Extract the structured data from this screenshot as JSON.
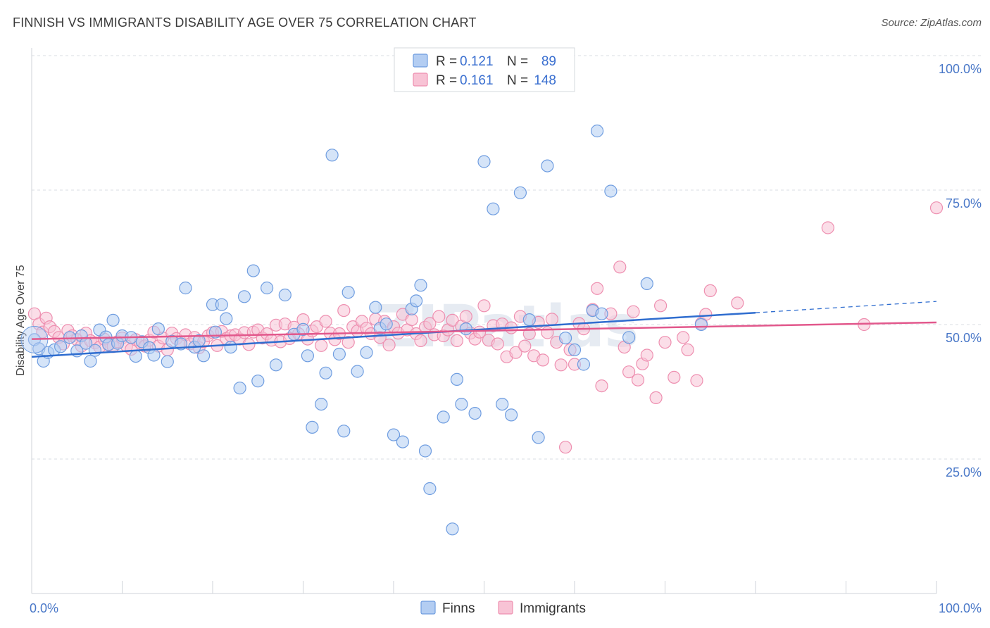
{
  "title": "FINNISH VS IMMIGRANTS DISABILITY AGE OVER 75 CORRELATION CHART",
  "source": "Source: ZipAtlas.com",
  "watermark": "ZIPatlas",
  "chart_data": {
    "type": "scatter",
    "title": "FINNISH VS IMMIGRANTS DISABILITY AGE OVER 75 CORRELATION CHART",
    "xlabel": "",
    "ylabel": "Disability Age Over 75",
    "xlim": [
      0,
      100
    ],
    "ylim": [
      0,
      100
    ],
    "x_tick_labels": [
      {
        "value": 0,
        "label": "0.0%"
      },
      {
        "value": 100,
        "label": "100.0%"
      }
    ],
    "y_tick_labels": [
      {
        "value": 100,
        "label": "100.0%"
      },
      {
        "value": 75,
        "label": "75.0%"
      },
      {
        "value": 50,
        "label": "50.0%"
      },
      {
        "value": 25,
        "label": "25.0%"
      }
    ],
    "grid": "horizontal dashed",
    "legend_position": "top-center",
    "legend": [
      {
        "series": "Finns",
        "r_label": "R =",
        "r_value": "0.121",
        "n_label": "N =",
        "n_value": "89"
      },
      {
        "series": "Immigrants",
        "r_label": "R =",
        "r_value": "0.161",
        "n_label": "N =",
        "n_value": "148"
      }
    ],
    "series": [
      {
        "name": "Finns",
        "color": "#6f9de0",
        "fill": "#b3cdf2",
        "trend": {
          "x0": 0,
          "y0": 44.0,
          "x1": 80,
          "y1": 52.2,
          "dash_to_x": 100,
          "dash_to_y": 54.3,
          "color": "#2f6dcf"
        },
        "points": [
          [
            0.3,
            47.2
          ],
          [
            0.8,
            45.5
          ],
          [
            1.3,
            43.2
          ],
          [
            1.8,
            44.8
          ],
          [
            2.5,
            45.3
          ],
          [
            3.2,
            45.9
          ],
          [
            4.2,
            47.6
          ],
          [
            5.0,
            45.1
          ],
          [
            5.5,
            47.9
          ],
          [
            6.0,
            46.5
          ],
          [
            6.5,
            43.2
          ],
          [
            7.0,
            45.2
          ],
          [
            7.5,
            49.0
          ],
          [
            8.2,
            47.7
          ],
          [
            8.5,
            46.3
          ],
          [
            9.0,
            50.8
          ],
          [
            9.5,
            46.5
          ],
          [
            10.0,
            47.9
          ],
          [
            11.0,
            47.6
          ],
          [
            11.5,
            44.1
          ],
          [
            12.2,
            46.8
          ],
          [
            13.0,
            45.7
          ],
          [
            13.5,
            44.3
          ],
          [
            14.0,
            49.2
          ],
          [
            15.0,
            43.1
          ],
          [
            15.5,
            46.9
          ],
          [
            16.5,
            46.4
          ],
          [
            17.0,
            56.8
          ],
          [
            18.0,
            45.8
          ],
          [
            18.5,
            47.0
          ],
          [
            19.0,
            44.2
          ],
          [
            20.0,
            53.7
          ],
          [
            20.3,
            48.6
          ],
          [
            21.0,
            53.7
          ],
          [
            21.5,
            51.1
          ],
          [
            22.0,
            45.8
          ],
          [
            23.0,
            38.2
          ],
          [
            23.5,
            55.2
          ],
          [
            24.5,
            60.0
          ],
          [
            25.0,
            39.5
          ],
          [
            26.0,
            56.8
          ],
          [
            27.0,
            42.5
          ],
          [
            28.0,
            55.5
          ],
          [
            29.0,
            48.2
          ],
          [
            30.0,
            49.1
          ],
          [
            30.5,
            44.2
          ],
          [
            31.0,
            30.9
          ],
          [
            32.0,
            35.2
          ],
          [
            32.5,
            41.0
          ],
          [
            33.2,
            81.5
          ],
          [
            34.0,
            44.5
          ],
          [
            34.5,
            30.2
          ],
          [
            35.0,
            56.0
          ],
          [
            36.0,
            41.3
          ],
          [
            37.0,
            44.8
          ],
          [
            38.0,
            53.2
          ],
          [
            38.5,
            49.3
          ],
          [
            39.2,
            50.1
          ],
          [
            40.0,
            29.5
          ],
          [
            41.0,
            28.2
          ],
          [
            42.0,
            52.9
          ],
          [
            42.5,
            54.4
          ],
          [
            43.0,
            57.3
          ],
          [
            43.5,
            26.5
          ],
          [
            44.0,
            19.5
          ],
          [
            45.5,
            32.8
          ],
          [
            46.5,
            12.0
          ],
          [
            47.0,
            39.8
          ],
          [
            47.5,
            35.2
          ],
          [
            48.0,
            49.2
          ],
          [
            49.0,
            33.5
          ],
          [
            50.0,
            80.3
          ],
          [
            51.0,
            71.5
          ],
          [
            52.0,
            35.2
          ],
          [
            53.0,
            33.2
          ],
          [
            54.0,
            74.5
          ],
          [
            55.0,
            50.9
          ],
          [
            56.0,
            29.0
          ],
          [
            57.0,
            79.5
          ],
          [
            59.0,
            47.5
          ],
          [
            60.0,
            45.3
          ],
          [
            61.0,
            42.6
          ],
          [
            62.0,
            52.6
          ],
          [
            62.5,
            86.0
          ],
          [
            63.0,
            52.0
          ],
          [
            64.0,
            74.8
          ],
          [
            66.0,
            47.6
          ],
          [
            68.0,
            57.6
          ],
          [
            74.0,
            50.0
          ]
        ]
      },
      {
        "name": "Immigrants",
        "color": "#ee8fb0",
        "fill": "#f8c3d5",
        "trend": {
          "x0": 0,
          "y0": 47.3,
          "x1": 100,
          "y1": 50.4,
          "color": "#e2588c"
        },
        "points": [
          [
            0.3,
            52.0
          ],
          [
            0.8,
            50.1
          ],
          [
            1.2,
            48.6
          ],
          [
            1.6,
            51.2
          ],
          [
            2.0,
            49.6
          ],
          [
            2.5,
            48.7
          ],
          [
            3.0,
            47.6
          ],
          [
            3.5,
            46.4
          ],
          [
            4.0,
            48.9
          ],
          [
            4.5,
            47.9
          ],
          [
            5.0,
            47.2
          ],
          [
            5.5,
            46.0
          ],
          [
            6.0,
            48.4
          ],
          [
            6.5,
            47.0
          ],
          [
            7.0,
            46.6
          ],
          [
            7.5,
            45.8
          ],
          [
            8.0,
            47.3
          ],
          [
            8.5,
            46.2
          ],
          [
            9.0,
            45.9
          ],
          [
            9.5,
            46.8
          ],
          [
            10.0,
            47.5
          ],
          [
            10.5,
            46.0
          ],
          [
            11.0,
            45.4
          ],
          [
            11.5,
            47.2
          ],
          [
            12.0,
            46.6
          ],
          [
            12.5,
            46.0
          ],
          [
            13.0,
            47.1
          ],
          [
            13.5,
            48.6
          ],
          [
            14.0,
            46.0
          ],
          [
            14.5,
            47.5
          ],
          [
            15.0,
            45.3
          ],
          [
            15.5,
            48.4
          ],
          [
            16.0,
            47.4
          ],
          [
            16.5,
            46.7
          ],
          [
            17.0,
            48.1
          ],
          [
            17.5,
            46.4
          ],
          [
            18.0,
            47.6
          ],
          [
            18.5,
            45.7
          ],
          [
            19.0,
            46.8
          ],
          [
            19.5,
            47.9
          ],
          [
            20.0,
            48.5
          ],
          [
            20.5,
            46.1
          ],
          [
            21.0,
            48.7
          ],
          [
            21.5,
            47.4
          ],
          [
            22.0,
            47.9
          ],
          [
            22.5,
            48.1
          ],
          [
            23.0,
            47.3
          ],
          [
            23.5,
            48.5
          ],
          [
            24.0,
            46.3
          ],
          [
            24.5,
            48.6
          ],
          [
            25.0,
            49.0
          ],
          [
            25.5,
            47.5
          ],
          [
            26.0,
            48.3
          ],
          [
            26.5,
            47.1
          ],
          [
            27.0,
            49.9
          ],
          [
            27.5,
            46.8
          ],
          [
            28.0,
            50.1
          ],
          [
            28.5,
            47.4
          ],
          [
            29.0,
            49.5
          ],
          [
            29.5,
            48.3
          ],
          [
            30.0,
            50.9
          ],
          [
            30.5,
            47.3
          ],
          [
            31.0,
            48.8
          ],
          [
            31.5,
            49.6
          ],
          [
            32.0,
            46.1
          ],
          [
            32.5,
            50.6
          ],
          [
            33.0,
            48.4
          ],
          [
            33.5,
            47.2
          ],
          [
            34.0,
            48.3
          ],
          [
            34.5,
            52.6
          ],
          [
            35.0,
            46.7
          ],
          [
            35.5,
            49.6
          ],
          [
            36.0,
            48.8
          ],
          [
            36.5,
            50.6
          ],
          [
            37.0,
            49.3
          ],
          [
            37.5,
            48.3
          ],
          [
            38.0,
            51.0
          ],
          [
            38.5,
            47.6
          ],
          [
            39.0,
            50.6
          ],
          [
            39.5,
            46.2
          ],
          [
            40.0,
            49.6
          ],
          [
            40.5,
            48.4
          ],
          [
            41.0,
            51.9
          ],
          [
            41.5,
            49.0
          ],
          [
            42.0,
            50.9
          ],
          [
            42.5,
            48.3
          ],
          [
            43.0,
            47.0
          ],
          [
            43.5,
            49.5
          ],
          [
            44.0,
            50.2
          ],
          [
            44.5,
            48.1
          ],
          [
            45.0,
            51.5
          ],
          [
            45.5,
            47.9
          ],
          [
            46.0,
            49.0
          ],
          [
            46.5,
            50.8
          ],
          [
            47.0,
            47.0
          ],
          [
            47.5,
            49.7
          ],
          [
            48.0,
            51.5
          ],
          [
            48.5,
            48.4
          ],
          [
            49.0,
            47.3
          ],
          [
            49.5,
            48.6
          ],
          [
            50.0,
            53.5
          ],
          [
            50.5,
            47.1
          ],
          [
            51.0,
            49.8
          ],
          [
            51.5,
            46.4
          ],
          [
            52.0,
            50.1
          ],
          [
            52.5,
            44.0
          ],
          [
            53.0,
            49.4
          ],
          [
            53.5,
            44.8
          ],
          [
            54.0,
            51.5
          ],
          [
            54.5,
            46.0
          ],
          [
            55.0,
            48.3
          ],
          [
            55.5,
            44.2
          ],
          [
            56.0,
            50.4
          ],
          [
            56.5,
            43.4
          ],
          [
            57.0,
            48.5
          ],
          [
            57.5,
            51.0
          ],
          [
            58.0,
            46.7
          ],
          [
            58.5,
            42.5
          ],
          [
            59.0,
            27.2
          ],
          [
            59.5,
            45.3
          ],
          [
            60.0,
            42.6
          ],
          [
            60.5,
            50.2
          ],
          [
            61.0,
            49.2
          ],
          [
            62.0,
            52.8
          ],
          [
            62.5,
            56.7
          ],
          [
            63.0,
            38.6
          ],
          [
            64.0,
            52.0
          ],
          [
            65.0,
            60.7
          ],
          [
            65.5,
            45.8
          ],
          [
            66.0,
            41.2
          ],
          [
            66.5,
            52.4
          ],
          [
            67.0,
            39.7
          ],
          [
            67.5,
            42.7
          ],
          [
            68.0,
            44.3
          ],
          [
            69.0,
            36.4
          ],
          [
            69.5,
            53.5
          ],
          [
            70.0,
            46.7
          ],
          [
            71.0,
            40.2
          ],
          [
            72.0,
            47.6
          ],
          [
            72.5,
            45.3
          ],
          [
            73.5,
            39.6
          ],
          [
            74.0,
            50.2
          ],
          [
            74.5,
            51.9
          ],
          [
            75.0,
            56.3
          ],
          [
            78.0,
            54.0
          ],
          [
            88.0,
            68.0
          ],
          [
            92.0,
            50.0
          ],
          [
            100.0,
            71.7
          ]
        ]
      }
    ]
  },
  "bottom_legend": [
    {
      "label": "Finns",
      "color": "#b3cdf2",
      "stroke": "#6f9de0"
    },
    {
      "label": "Immigrants",
      "color": "#f8c3d5",
      "stroke": "#ee8fb0"
    }
  ]
}
